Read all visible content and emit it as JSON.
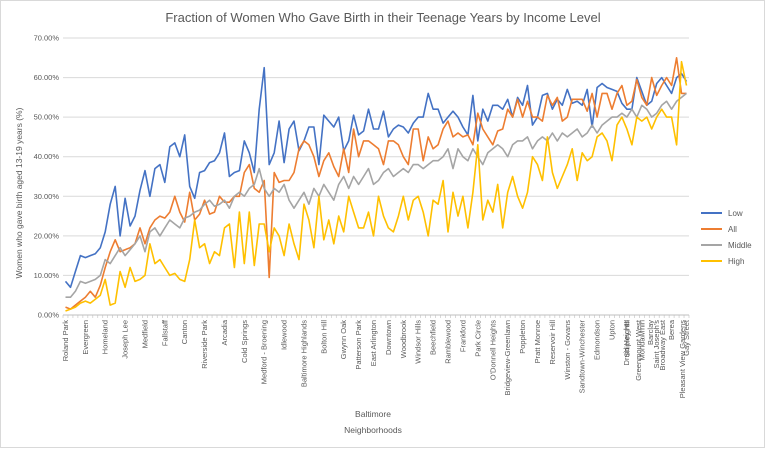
{
  "chart_data": {
    "type": "line",
    "title": "Fraction of Women  Who  Gave Birth  in their Teenage Years by Income Level",
    "ylabel": "Women who gave birth aged 13-19 years (%)",
    "xgroup_label": "Baltimore",
    "xlabel": "Neighborhoods",
    "ylim": [
      0,
      0.7
    ],
    "yticks": [
      "0.00%",
      "10.00%",
      "20.00%",
      "30.00%",
      "40.00%",
      "50.00%",
      "60.00%",
      "70.00%"
    ],
    "ytick_values": [
      0,
      0.1,
      0.2,
      0.3,
      0.4,
      0.5,
      0.6,
      0.7
    ],
    "grid": true,
    "legend_position": "right",
    "point_count": 126,
    "x_labels": [
      {
        "i": 0,
        "label": "Roland Park"
      },
      {
        "i": 4,
        "label": "Evergreen"
      },
      {
        "i": 8,
        "label": "Homeland"
      },
      {
        "i": 12,
        "label": "Joseph Lee"
      },
      {
        "i": 16,
        "label": "Medfield"
      },
      {
        "i": 20,
        "label": "Fallstaff"
      },
      {
        "i": 24,
        "label": "Canton"
      },
      {
        "i": 28,
        "label": "Riverside Park"
      },
      {
        "i": 32,
        "label": "Arcadia"
      },
      {
        "i": 36,
        "label": "Cold Springs"
      },
      {
        "i": 40,
        "label": "Medford - Broening"
      },
      {
        "i": 44,
        "label": "Idlewood"
      },
      {
        "i": 48,
        "label": "Baltimore Highlands"
      },
      {
        "i": 52,
        "label": "Bolton Hill"
      },
      {
        "i": 56,
        "label": "Gwynn Oak"
      },
      {
        "i": 59,
        "label": "Patterson Park"
      },
      {
        "i": 62,
        "label": "East Arlington"
      },
      {
        "i": 65,
        "label": "Downtown"
      },
      {
        "i": 68,
        "label": "Woodbrook"
      },
      {
        "i": 71,
        "label": "Windsor Hills"
      },
      {
        "i": 74,
        "label": "Beechfield"
      },
      {
        "i": 77,
        "label": "Ramblewood"
      },
      {
        "i": 80,
        "label": "Frankford"
      },
      {
        "i": 83,
        "label": "Park Circle"
      },
      {
        "i": 86,
        "label": "O'Donnell Heights"
      },
      {
        "i": 89,
        "label": "Bridgeview-Greenlawn"
      },
      {
        "i": 92,
        "label": "Poppleton"
      },
      {
        "i": 95,
        "label": "Pratt Monroe"
      },
      {
        "i": 98,
        "label": "Reservoir Hill"
      },
      {
        "i": 101,
        "label": "Winston - Govans"
      },
      {
        "i": 104,
        "label": "Sandtown-Winchester"
      },
      {
        "i": 107,
        "label": "Edmondson"
      },
      {
        "i": 110,
        "label": "Upton"
      },
      {
        "i": 113,
        "label": "Shipley Hill"
      },
      {
        "i": 116,
        "label": "Mondawmin"
      },
      {
        "i": 119,
        "label": "Saint Joseph's"
      },
      {
        "i": 122,
        "label": "Berea"
      },
      {
        "i": 125,
        "label": "Gay Street"
      }
    ],
    "x_labels_extra": [
      "Druid Heights",
      "Greenmount West",
      "Barclay",
      "Broadway East",
      "Pleasant View Gardens"
    ],
    "series": [
      {
        "name": "Low",
        "color": "#4472c4",
        "values": [
          0.085,
          0.07,
          0.11,
          0.15,
          0.145,
          0.15,
          0.155,
          0.17,
          0.21,
          0.28,
          0.325,
          0.2,
          0.295,
          0.225,
          0.25,
          0.315,
          0.365,
          0.3,
          0.37,
          0.38,
          0.335,
          0.425,
          0.435,
          0.4,
          0.455,
          0.325,
          0.295,
          0.36,
          0.365,
          0.385,
          0.39,
          0.41,
          0.46,
          0.35,
          0.36,
          0.365,
          0.44,
          0.41,
          0.36,
          0.52,
          0.625,
          0.38,
          0.41,
          0.49,
          0.385,
          0.47,
          0.49,
          0.415,
          0.44,
          0.475,
          0.475,
          0.38,
          0.505,
          0.49,
          0.475,
          0.5,
          0.415,
          0.44,
          0.505,
          0.455,
          0.465,
          0.52,
          0.47,
          0.47,
          0.515,
          0.45,
          0.47,
          0.48,
          0.475,
          0.46,
          0.485,
          0.5,
          0.5,
          0.56,
          0.52,
          0.52,
          0.485,
          0.5,
          0.515,
          0.5,
          0.475,
          0.455,
          0.555,
          0.44,
          0.52,
          0.49,
          0.53,
          0.53,
          0.52,
          0.545,
          0.5,
          0.55,
          0.53,
          0.58,
          0.48,
          0.5,
          0.555,
          0.56,
          0.52,
          0.545,
          0.53,
          0.57,
          0.535,
          0.54,
          0.53,
          0.57,
          0.475,
          0.575,
          0.585,
          0.575,
          0.57,
          0.565,
          0.535,
          0.52,
          0.52,
          0.6,
          0.565,
          0.53,
          0.54,
          0.585,
          0.6,
          0.58,
          0.56,
          0.6,
          0.61,
          0.59
        ]
      },
      {
        "name": "All",
        "color": "#ed7d31",
        "values": [
          0.02,
          0.015,
          0.025,
          0.035,
          0.045,
          0.06,
          0.045,
          0.075,
          0.12,
          0.16,
          0.19,
          0.16,
          0.165,
          0.17,
          0.18,
          0.22,
          0.18,
          0.22,
          0.24,
          0.25,
          0.245,
          0.26,
          0.3,
          0.26,
          0.235,
          0.31,
          0.24,
          0.255,
          0.29,
          0.255,
          0.26,
          0.3,
          0.285,
          0.285,
          0.3,
          0.3,
          0.36,
          0.38,
          0.32,
          0.31,
          0.34,
          0.095,
          0.36,
          0.335,
          0.34,
          0.34,
          0.36,
          0.42,
          0.44,
          0.43,
          0.4,
          0.35,
          0.39,
          0.41,
          0.375,
          0.35,
          0.42,
          0.36,
          0.47,
          0.4,
          0.44,
          0.44,
          0.43,
          0.42,
          0.38,
          0.44,
          0.44,
          0.43,
          0.4,
          0.38,
          0.47,
          0.47,
          0.39,
          0.45,
          0.42,
          0.43,
          0.47,
          0.49,
          0.45,
          0.46,
          0.45,
          0.455,
          0.43,
          0.51,
          0.47,
          0.45,
          0.43,
          0.465,
          0.47,
          0.52,
          0.5,
          0.545,
          0.5,
          0.54,
          0.5,
          0.5,
          0.49,
          0.555,
          0.53,
          0.55,
          0.49,
          0.5,
          0.545,
          0.545,
          0.545,
          0.515,
          0.56,
          0.5,
          0.56,
          0.56,
          0.52,
          0.56,
          0.58,
          0.53,
          0.54,
          0.595,
          0.55,
          0.53,
          0.6,
          0.555,
          0.58,
          0.6,
          0.58,
          0.65,
          0.56,
          0.56
        ]
      },
      {
        "name": "Middle",
        "color": "#a5a5a5",
        "values": [
          0.045,
          0.045,
          0.06,
          0.085,
          0.08,
          0.085,
          0.09,
          0.1,
          0.14,
          0.13,
          0.15,
          0.17,
          0.15,
          0.165,
          0.18,
          0.2,
          0.16,
          0.21,
          0.22,
          0.2,
          0.22,
          0.24,
          0.23,
          0.22,
          0.245,
          0.25,
          0.26,
          0.265,
          0.28,
          0.29,
          0.275,
          0.28,
          0.29,
          0.27,
          0.3,
          0.31,
          0.3,
          0.32,
          0.33,
          0.37,
          0.32,
          0.3,
          0.32,
          0.31,
          0.33,
          0.29,
          0.27,
          0.29,
          0.31,
          0.28,
          0.32,
          0.3,
          0.33,
          0.31,
          0.29,
          0.33,
          0.35,
          0.32,
          0.35,
          0.33,
          0.35,
          0.37,
          0.33,
          0.34,
          0.36,
          0.37,
          0.35,
          0.36,
          0.37,
          0.36,
          0.38,
          0.38,
          0.37,
          0.38,
          0.39,
          0.39,
          0.4,
          0.42,
          0.37,
          0.42,
          0.4,
          0.39,
          0.42,
          0.4,
          0.38,
          0.41,
          0.42,
          0.43,
          0.42,
          0.4,
          0.43,
          0.44,
          0.44,
          0.45,
          0.42,
          0.44,
          0.45,
          0.44,
          0.46,
          0.44,
          0.46,
          0.45,
          0.46,
          0.47,
          0.45,
          0.46,
          0.48,
          0.46,
          0.48,
          0.49,
          0.5,
          0.5,
          0.51,
          0.5,
          0.52,
          0.5,
          0.53,
          0.52,
          0.5,
          0.51,
          0.53,
          0.54,
          0.52,
          0.54,
          0.55,
          0.56
        ]
      },
      {
        "name": "High",
        "color": "#ffc000",
        "values": [
          0.01,
          0.015,
          0.02,
          0.03,
          0.035,
          0.03,
          0.04,
          0.05,
          0.09,
          0.025,
          0.03,
          0.11,
          0.07,
          0.12,
          0.085,
          0.09,
          0.1,
          0.18,
          0.13,
          0.14,
          0.12,
          0.1,
          0.105,
          0.09,
          0.085,
          0.14,
          0.24,
          0.17,
          0.18,
          0.13,
          0.16,
          0.15,
          0.22,
          0.23,
          0.12,
          0.26,
          0.13,
          0.26,
          0.125,
          0.23,
          0.23,
          0.16,
          0.22,
          0.2,
          0.15,
          0.23,
          0.18,
          0.14,
          0.28,
          0.24,
          0.17,
          0.3,
          0.19,
          0.24,
          0.18,
          0.25,
          0.21,
          0.3,
          0.26,
          0.22,
          0.22,
          0.26,
          0.2,
          0.3,
          0.25,
          0.22,
          0.21,
          0.25,
          0.3,
          0.24,
          0.29,
          0.3,
          0.26,
          0.2,
          0.29,
          0.28,
          0.34,
          0.21,
          0.31,
          0.25,
          0.3,
          0.22,
          0.31,
          0.43,
          0.24,
          0.29,
          0.26,
          0.33,
          0.22,
          0.31,
          0.35,
          0.3,
          0.27,
          0.31,
          0.4,
          0.38,
          0.34,
          0.45,
          0.36,
          0.32,
          0.35,
          0.38,
          0.42,
          0.34,
          0.41,
          0.39,
          0.4,
          0.45,
          0.46,
          0.44,
          0.39,
          0.48,
          0.5,
          0.47,
          0.43,
          0.5,
          0.49,
          0.5,
          0.47,
          0.5,
          0.52,
          0.5,
          0.5,
          0.43,
          0.64,
          0.58
        ]
      }
    ]
  }
}
